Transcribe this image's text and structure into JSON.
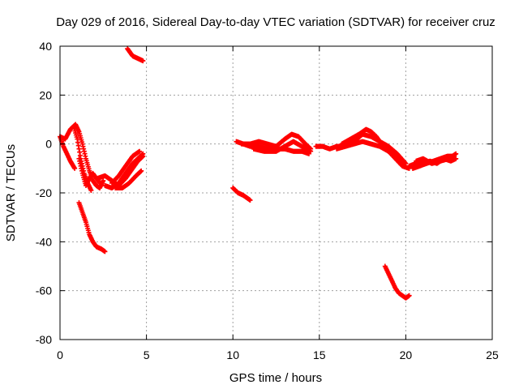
{
  "chart_data": {
    "type": "scatter",
    "title": "Day 029 of 2016, Sidereal Day-to-day VTEC variation (SDTVAR) for receiver cruz",
    "xlabel": "GPS time / hours",
    "ylabel": "SDTVAR / TECUs",
    "xlim": [
      0,
      25
    ],
    "ylim": [
      -80,
      40
    ],
    "xticks": [
      "0",
      "5",
      "10",
      "15",
      "20",
      "25"
    ],
    "yticks": [
      "-80",
      "-60",
      "-40",
      "-20",
      "0",
      "20",
      "40"
    ],
    "grid": true,
    "marker": "plus",
    "series": [
      {
        "name": "SDTVAR",
        "color": "#ff0000",
        "segments": [
          [
            [
              0.0,
              3
            ],
            [
              0.3,
              2
            ],
            [
              0.6,
              6
            ],
            [
              0.9,
              8
            ],
            [
              1.1,
              5
            ],
            [
              1.3,
              0
            ],
            [
              1.5,
              -6
            ],
            [
              1.7,
              -11
            ],
            [
              1.9,
              -15
            ],
            [
              2.1,
              -17
            ],
            [
              2.3,
              -18
            ],
            [
              2.5,
              -15
            ]
          ],
          [
            [
              0.0,
              3
            ],
            [
              0.2,
              -1
            ],
            [
              0.4,
              -4
            ],
            [
              0.6,
              -7
            ],
            [
              0.85,
              -10
            ]
          ],
          [
            [
              0.8,
              7
            ],
            [
              1.0,
              2
            ],
            [
              1.2,
              -6
            ],
            [
              1.4,
              -12
            ],
            [
              1.6,
              -16
            ],
            [
              1.8,
              -19
            ]
          ],
          [
            [
              1.1,
              -6
            ],
            [
              1.3,
              -12
            ],
            [
              1.5,
              -17
            ],
            [
              1.7,
              -14
            ],
            [
              1.9,
              -12
            ],
            [
              2.1,
              -14
            ],
            [
              2.3,
              -16
            ]
          ],
          [
            [
              2.2,
              -14
            ],
            [
              2.6,
              -13
            ],
            [
              3.0,
              -15
            ],
            [
              3.4,
              -17
            ],
            [
              3.8,
              -14
            ],
            [
              4.2,
              -10
            ],
            [
              4.5,
              -7
            ],
            [
              4.8,
              -5
            ]
          ],
          [
            [
              2.6,
              -17
            ],
            [
              3.0,
              -18
            ],
            [
              3.4,
              -16
            ],
            [
              3.8,
              -12
            ],
            [
              4.2,
              -8
            ],
            [
              4.5,
              -6
            ],
            [
              4.8,
              -4
            ]
          ],
          [
            [
              3.0,
              -16
            ],
            [
              3.4,
              -13
            ],
            [
              3.8,
              -9
            ],
            [
              4.2,
              -5
            ],
            [
              4.6,
              -3
            ]
          ],
          [
            [
              3.2,
              -18
            ],
            [
              3.6,
              -18
            ],
            [
              4.0,
              -16
            ],
            [
              4.4,
              -13
            ],
            [
              4.7,
              -11
            ]
          ],
          [
            [
              1.1,
              -24
            ],
            [
              1.3,
              -28
            ],
            [
              1.5,
              -32
            ],
            [
              1.7,
              -37
            ],
            [
              1.9,
              -40
            ],
            [
              2.1,
              -42
            ],
            [
              2.4,
              -43
            ],
            [
              2.6,
              -44
            ]
          ],
          [
            [
              3.9,
              39
            ],
            [
              4.2,
              36
            ],
            [
              4.5,
              35
            ],
            [
              4.8,
              34
            ]
          ],
          [
            [
              10.0,
              -18
            ],
            [
              10.3,
              -20
            ],
            [
              10.6,
              -21
            ],
            [
              11.0,
              -23
            ]
          ],
          [
            [
              10.2,
              1
            ],
            [
              10.6,
              0
            ],
            [
              11.0,
              -1
            ],
            [
              11.5,
              -1
            ],
            [
              12.0,
              -2
            ],
            [
              12.5,
              -2
            ],
            [
              13.0,
              -2
            ],
            [
              13.5,
              -3
            ],
            [
              14.0,
              -3
            ],
            [
              14.4,
              -4
            ]
          ],
          [
            [
              10.5,
              0
            ],
            [
              11.0,
              0
            ],
            [
              11.5,
              1
            ],
            [
              12.0,
              0
            ],
            [
              12.5,
              -1
            ],
            [
              13.0,
              2
            ],
            [
              13.4,
              4
            ],
            [
              13.8,
              3
            ],
            [
              14.2,
              0
            ],
            [
              14.5,
              -2
            ]
          ],
          [
            [
              11.2,
              -2
            ],
            [
              11.8,
              -3
            ],
            [
              12.5,
              -3
            ],
            [
              13.0,
              -1
            ],
            [
              13.5,
              1
            ],
            [
              14.0,
              -1
            ],
            [
              14.5,
              -3
            ]
          ],
          [
            [
              14.8,
              -1
            ],
            [
              15.2,
              -1
            ],
            [
              15.6,
              -2
            ],
            [
              16.0,
              -1
            ],
            [
              16.4,
              -1
            ]
          ],
          [
            [
              16.0,
              -2
            ],
            [
              16.5,
              -1
            ],
            [
              17.0,
              0
            ],
            [
              17.5,
              1
            ],
            [
              18.0,
              0
            ],
            [
              18.5,
              -1
            ],
            [
              19.0,
              -3
            ],
            [
              19.5,
              -6
            ],
            [
              19.9,
              -8
            ]
          ],
          [
            [
              16.3,
              0
            ],
            [
              16.8,
              2
            ],
            [
              17.3,
              4
            ],
            [
              17.7,
              6
            ],
            [
              18.0,
              5
            ],
            [
              18.3,
              3
            ],
            [
              18.6,
              0
            ],
            [
              19.0,
              -3
            ],
            [
              19.4,
              -6
            ],
            [
              19.8,
              -9
            ],
            [
              20.2,
              -10
            ]
          ],
          [
            [
              16.5,
              -1
            ],
            [
              17.0,
              1
            ],
            [
              17.5,
              4
            ],
            [
              18.0,
              3
            ],
            [
              18.5,
              1
            ],
            [
              19.0,
              -1
            ],
            [
              19.5,
              -4
            ],
            [
              20.0,
              -8
            ]
          ],
          [
            [
              18.8,
              -50
            ],
            [
              19.0,
              -53
            ],
            [
              19.2,
              -56
            ],
            [
              19.4,
              -59
            ],
            [
              19.6,
              -61
            ],
            [
              19.8,
              -62
            ],
            [
              20.0,
              -63
            ],
            [
              20.2,
              -62
            ]
          ],
          [
            [
              20.2,
              -9
            ],
            [
              20.6,
              -8
            ],
            [
              21.0,
              -8
            ],
            [
              21.4,
              -7
            ],
            [
              21.8,
              -8
            ],
            [
              22.2,
              -6
            ],
            [
              22.6,
              -7
            ],
            [
              22.9,
              -6
            ]
          ],
          [
            [
              20.4,
              -10
            ],
            [
              20.8,
              -9
            ],
            [
              21.2,
              -8
            ],
            [
              21.6,
              -7
            ],
            [
              22.0,
              -6
            ],
            [
              22.4,
              -5
            ],
            [
              22.8,
              -5
            ]
          ],
          [
            [
              20.6,
              -7
            ],
            [
              21.0,
              -6
            ],
            [
              21.5,
              -8
            ],
            [
              22.0,
              -7
            ],
            [
              22.5,
              -6
            ],
            [
              22.9,
              -4
            ]
          ]
        ]
      }
    ]
  }
}
